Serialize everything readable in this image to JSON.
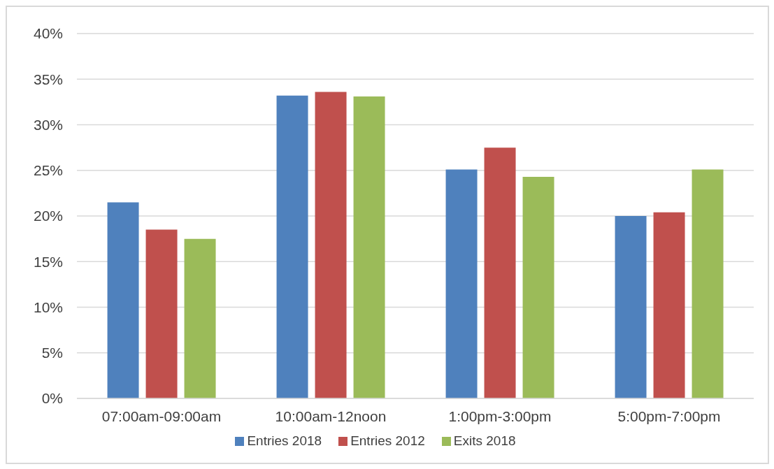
{
  "chart_data": {
    "type": "bar",
    "categories": [
      "07:00am-09:00am",
      "10:00am-12noon",
      "1:00pm-3:00pm",
      "5:00pm-7:00pm"
    ],
    "series": [
      {
        "name": "Entries 2018",
        "color": "#4f81bd",
        "values": [
          21.5,
          33.2,
          25.1,
          20.0
        ]
      },
      {
        "name": "Entries 2012",
        "color": "#c0504d",
        "values": [
          18.5,
          33.6,
          27.5,
          20.4
        ]
      },
      {
        "name": "Exits 2018",
        "color": "#9bbb59",
        "values": [
          17.5,
          33.1,
          24.3,
          25.1
        ]
      }
    ],
    "ylim": [
      0,
      40
    ],
    "yticks": [
      {
        "value": 0,
        "label": "0%"
      },
      {
        "value": 5,
        "label": "5%"
      },
      {
        "value": 10,
        "label": "10%"
      },
      {
        "value": 15,
        "label": "15%"
      },
      {
        "value": 20,
        "label": "20%"
      },
      {
        "value": 25,
        "label": "25%"
      },
      {
        "value": 30,
        "label": "30%"
      },
      {
        "value": 35,
        "label": "35%"
      },
      {
        "value": 40,
        "label": "40%"
      }
    ],
    "grid": "y",
    "legend": "bottom"
  }
}
